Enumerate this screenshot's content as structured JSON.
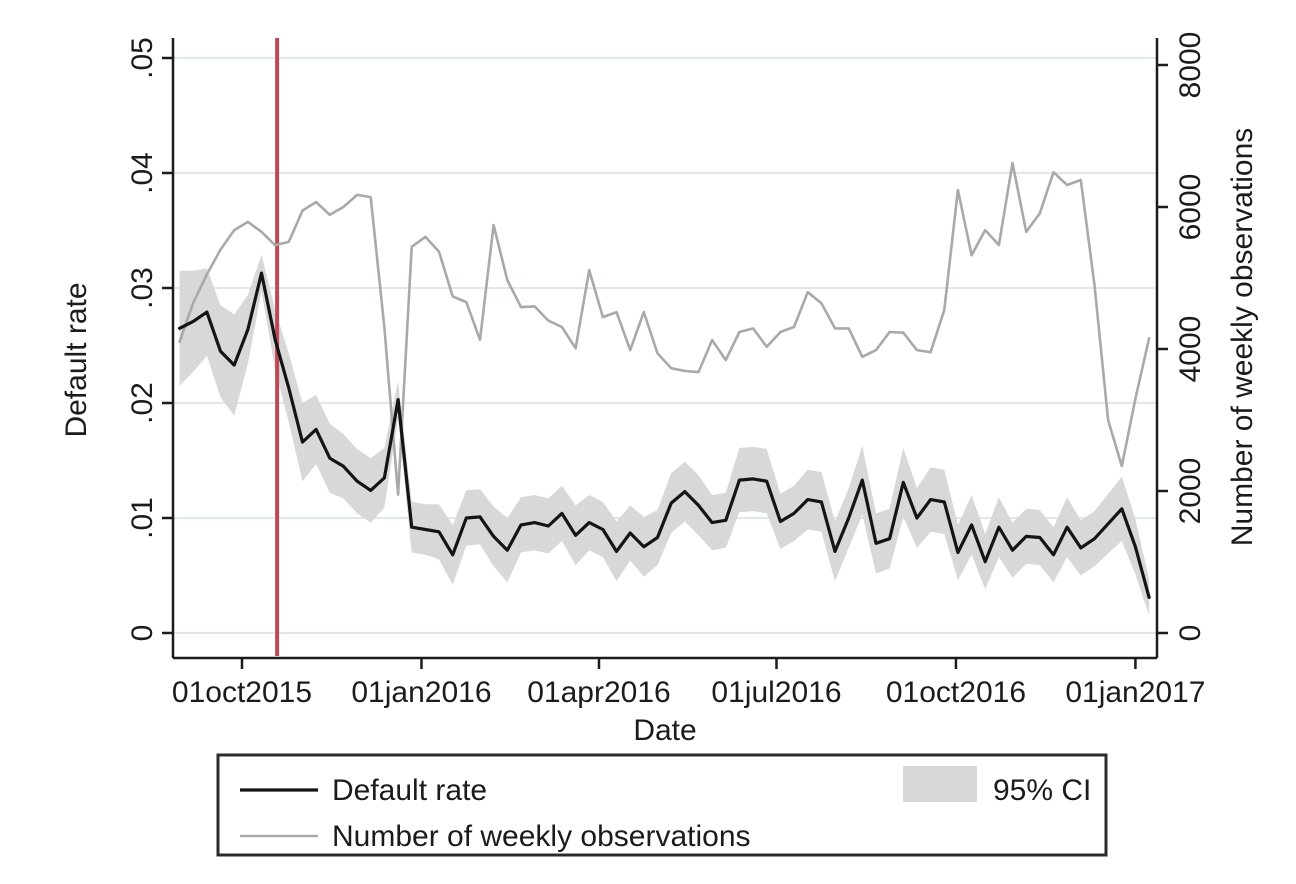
{
  "chart_data": {
    "type": "line",
    "title": "",
    "xlabel": "Date",
    "ylabel_left": "Default rate",
    "ylabel_right": "Number of weekly observations",
    "grid": true,
    "legend_position": "bottom",
    "x_ticks": [
      {
        "label": "01oct2015",
        "date": "2015-10-01"
      },
      {
        "label": "01jan2016",
        "date": "2016-01-01"
      },
      {
        "label": "01apr2016",
        "date": "2016-04-01"
      },
      {
        "label": "01jul2016",
        "date": "2016-07-01"
      },
      {
        "label": "01oct2016",
        "date": "2016-10-01"
      },
      {
        "label": "01jan2017",
        "date": "2017-01-01"
      }
    ],
    "y_left": {
      "tick_labels": [
        "0",
        ".01",
        ".02",
        ".03",
        ".04",
        ".05"
      ],
      "tick_values": [
        0,
        0.01,
        0.02,
        0.03,
        0.04,
        0.05
      ],
      "range": [
        0,
        0.05
      ]
    },
    "y_right": {
      "tick_labels": [
        "0",
        "2000",
        "4000",
        "6000",
        "8000"
      ],
      "tick_values": [
        0,
        2000,
        4000,
        6000,
        8000
      ],
      "range": [
        0,
        8000
      ]
    },
    "vline": {
      "date": "2015-10-19",
      "color": "#bc4a55"
    },
    "start_date": "2015-08-30",
    "interval_days": 7,
    "n_points": 72,
    "series": [
      {
        "name": "Default rate",
        "axis": "left",
        "kind": "line",
        "color": "#141414",
        "values": [
          0.0265,
          0.0271,
          0.0279,
          0.0245,
          0.0233,
          0.0264,
          0.0313,
          0.0255,
          0.0213,
          0.0166,
          0.0177,
          0.0152,
          0.0145,
          0.0132,
          0.0124,
          0.0135,
          0.0203,
          0.0092,
          0.009,
          0.0088,
          0.0068,
          0.01,
          0.0101,
          0.0084,
          0.0072,
          0.0094,
          0.0096,
          0.0093,
          0.0104,
          0.0085,
          0.0096,
          0.009,
          0.0071,
          0.0087,
          0.0075,
          0.0083,
          0.0113,
          0.0123,
          0.0111,
          0.0096,
          0.0098,
          0.0133,
          0.0134,
          0.0132,
          0.0097,
          0.0104,
          0.0116,
          0.0114,
          0.0071,
          0.01,
          0.0133,
          0.0078,
          0.0082,
          0.0131,
          0.01,
          0.0116,
          0.0114,
          0.007,
          0.0094,
          0.0062,
          0.0092,
          0.0072,
          0.0084,
          0.0083,
          0.0068,
          0.0092,
          0.0074,
          0.0082,
          0.0095,
          0.0108,
          0.0075,
          0.0031
        ]
      },
      {
        "name": "95% CI",
        "axis": "left",
        "kind": "band",
        "color": "#d8d8d8",
        "low": [
          0.0215,
          0.0227,
          0.0241,
          0.0205,
          0.0189,
          0.0234,
          0.0297,
          0.0229,
          0.0183,
          0.0132,
          0.0147,
          0.0122,
          0.0117,
          0.0104,
          0.0096,
          0.0109,
          0.0187,
          0.007,
          0.0068,
          0.0064,
          0.0042,
          0.0076,
          0.0077,
          0.0058,
          0.0044,
          0.007,
          0.0072,
          0.0069,
          0.008,
          0.0059,
          0.0072,
          0.0066,
          0.0045,
          0.0063,
          0.0049,
          0.0059,
          0.0087,
          0.0097,
          0.0085,
          0.0072,
          0.0074,
          0.0105,
          0.0106,
          0.0104,
          0.0073,
          0.008,
          0.009,
          0.0088,
          0.0045,
          0.0074,
          0.0103,
          0.0052,
          0.0056,
          0.0101,
          0.0074,
          0.0088,
          0.0086,
          0.0046,
          0.0068,
          0.0038,
          0.0066,
          0.0048,
          0.006,
          0.0059,
          0.0044,
          0.0066,
          0.005,
          0.0058,
          0.0069,
          0.008,
          0.0051,
          0.0015
        ],
        "high": [
          0.0315,
          0.0315,
          0.0317,
          0.0285,
          0.0277,
          0.0294,
          0.0329,
          0.0281,
          0.0243,
          0.02,
          0.0207,
          0.0182,
          0.0173,
          0.016,
          0.0152,
          0.0161,
          0.0219,
          0.0114,
          0.0112,
          0.0112,
          0.0094,
          0.0124,
          0.0125,
          0.011,
          0.01,
          0.0118,
          0.012,
          0.0117,
          0.0128,
          0.0111,
          0.012,
          0.0114,
          0.0097,
          0.0111,
          0.0101,
          0.0107,
          0.0139,
          0.0149,
          0.0137,
          0.012,
          0.0122,
          0.0161,
          0.0162,
          0.016,
          0.0121,
          0.0128,
          0.0142,
          0.014,
          0.0097,
          0.0126,
          0.0163,
          0.0104,
          0.0108,
          0.0161,
          0.0126,
          0.0144,
          0.0142,
          0.0094,
          0.012,
          0.0086,
          0.0118,
          0.0096,
          0.0108,
          0.0107,
          0.0092,
          0.0118,
          0.0098,
          0.0106,
          0.0121,
          0.0136,
          0.0099,
          0.0047
        ]
      },
      {
        "name": "Number of weekly observations",
        "axis": "right",
        "kind": "line",
        "color": "#a9a9a9",
        "values": [
          4100,
          4650,
          5050,
          5400,
          5675,
          5790,
          5650,
          5460,
          5510,
          5950,
          6070,
          5890,
          6000,
          6170,
          6140,
          4300,
          1950,
          5440,
          5580,
          5370,
          4740,
          4660,
          4130,
          5745,
          4970,
          4590,
          4600,
          4400,
          4310,
          4010,
          5110,
          4450,
          4520,
          3985,
          4520,
          3940,
          3730,
          3690,
          3675,
          4125,
          3845,
          4240,
          4290,
          4030,
          4240,
          4310,
          4800,
          4645,
          4290,
          4290,
          3890,
          3985,
          4240,
          4230,
          3985,
          3955,
          4550,
          6240,
          5320,
          5675,
          5465,
          6620,
          5650,
          5910,
          6490,
          6310,
          6380,
          4900,
          3000,
          2350,
          3300,
          4150
        ]
      }
    ],
    "legend": [
      {
        "label": "Default rate",
        "swatch": "line-black"
      },
      {
        "label": "95% CI",
        "swatch": "area-gray"
      },
      {
        "label": "Number of weekly observations",
        "swatch": "line-gray"
      }
    ],
    "colors": {
      "axis": "#1b1b1b",
      "grid": "#dee8eb",
      "default_rate_line": "#141414",
      "observations_line": "#a9a9a9",
      "ci_band": "#d8d8d8",
      "event_line": "#bc4a55",
      "background": "#ffffff"
    }
  }
}
